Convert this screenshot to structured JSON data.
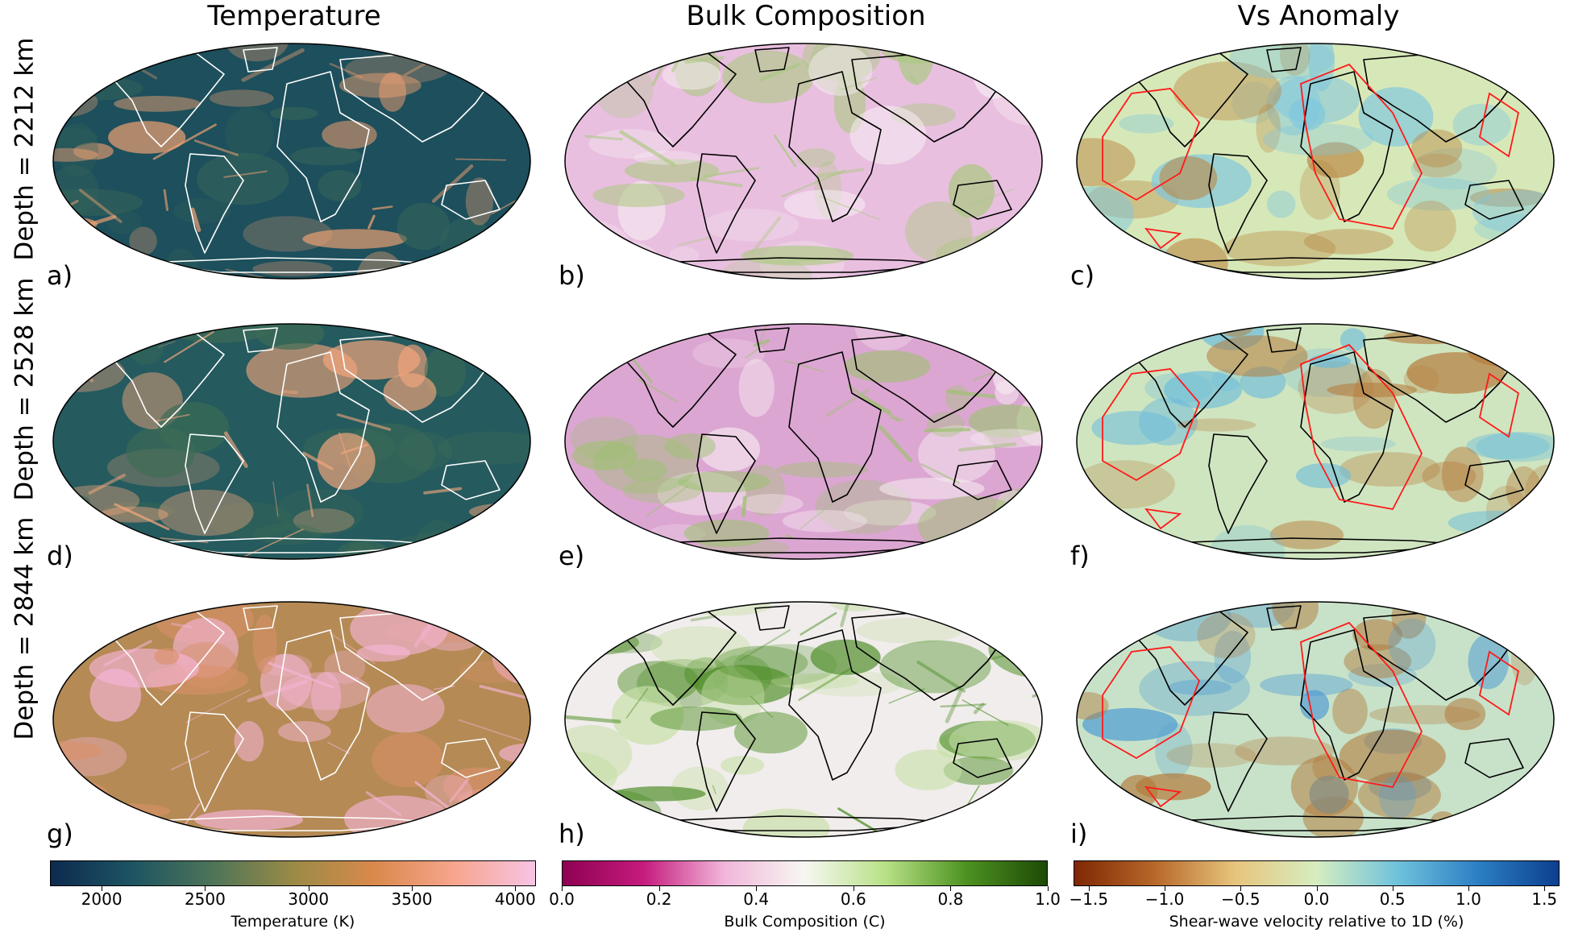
{
  "columns": [
    {
      "title": "Temperature"
    },
    {
      "title": "Bulk Composition"
    },
    {
      "title": "Vs Anomaly"
    }
  ],
  "rows": [
    {
      "depth_label": "Depth = 2212 km",
      "panels": [
        "a)",
        "b)",
        "c)"
      ]
    },
    {
      "depth_label": "Depth = 2528 km",
      "panels": [
        "d)",
        "e)",
        "f)"
      ]
    },
    {
      "depth_label": "Depth = 2844 km",
      "panels": [
        "g)",
        "h)",
        "i)"
      ]
    }
  ],
  "colorbars": [
    {
      "label": "Temperature (K)",
      "min": 1750,
      "max": 4100,
      "ticks": [
        "2000",
        "2500",
        "3000",
        "3500",
        "4000"
      ],
      "tick_values": [
        2000,
        2500,
        3000,
        3500,
        4000
      ],
      "colors": [
        "#0d2a4f",
        "#1d5462",
        "#4d7458",
        "#9a8a46",
        "#d9894b",
        "#f7a58e",
        "#f7c4e4"
      ]
    },
    {
      "label": "Bulk Composition (C)",
      "min": 0.0,
      "max": 1.0,
      "ticks": [
        "0.0",
        "0.2",
        "0.4",
        "0.6",
        "0.8",
        "1.0"
      ],
      "tick_values": [
        0.0,
        0.2,
        0.4,
        0.6,
        0.8,
        1.0
      ],
      "colors": [
        "#8e0152",
        "#c51b7d",
        "#f1b6da",
        "#f7f7f2",
        "#b8e186",
        "#4d9221",
        "#1d4a06"
      ]
    },
    {
      "label": "Shear-wave velocity relative to 1D (%)",
      "min": -1.6,
      "max": 1.6,
      "ticks": [
        "−1.5",
        "−1.0",
        "−0.5",
        "0.0",
        "0.5",
        "1.0",
        "1.5"
      ],
      "tick_values": [
        -1.5,
        -1.0,
        -0.5,
        0.0,
        0.5,
        1.0,
        1.5
      ],
      "colors": [
        "#7f2704",
        "#b8682a",
        "#e7c57d",
        "#d6edc0",
        "#6fc2dc",
        "#2c7fc4",
        "#0c3f8f"
      ]
    }
  ],
  "map_styles": {
    "temperature_row_colors": [
      [
        "#1d4f5c",
        "#34645a",
        "#f2a273"
      ],
      [
        "#255a5e",
        "#3d6b55",
        "#f6a77d"
      ],
      [
        "#b58a55",
        "#d9906a",
        "#f6b6d8"
      ]
    ],
    "composition_row_colors": [
      [
        "#e9bfe0",
        "#f6eef2",
        "#a8c97d"
      ],
      [
        "#dca6d2",
        "#f5e8ef",
        "#9cc26f"
      ],
      [
        "#f1edec",
        "#c7dfa7",
        "#4d8e26"
      ]
    ],
    "vs_row_colors": [
      [
        "#d7e8b8",
        "#7dc6df",
        "#b9833e"
      ],
      [
        "#cfe5c0",
        "#6bbbdb",
        "#b57a3a"
      ],
      [
        "#c8e2c9",
        "#4d9bd3",
        "#b27a3a"
      ]
    ],
    "coastline_colors": [
      "#ffffff",
      "#000000",
      "#000000"
    ],
    "contour_color": "#ff1a1a"
  }
}
